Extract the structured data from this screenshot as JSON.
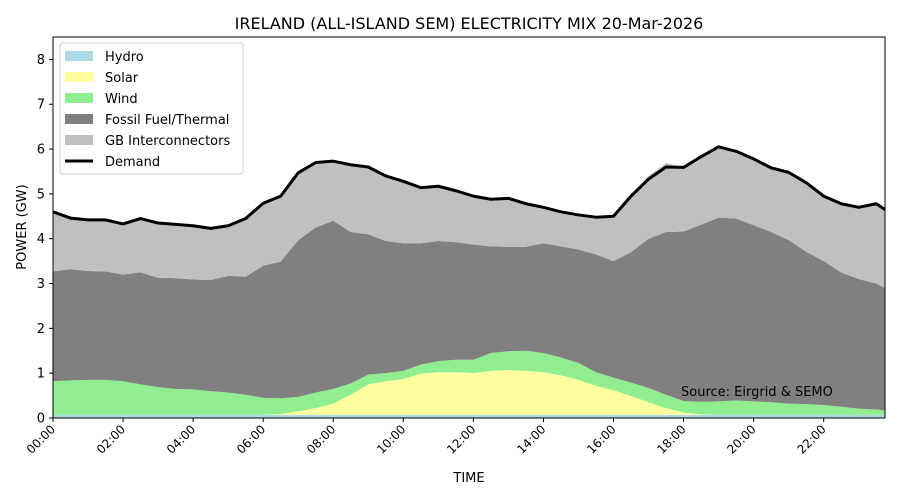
{
  "chart_data": {
    "type": "area",
    "stacked": true,
    "title": "IRELAND (ALL-ISLAND SEM) ELECTRICITY MIX 20-Mar-2026",
    "xlabel": "TIME",
    "ylabel": "POWER (GW)",
    "xlim": [
      0,
      23.75
    ],
    "ylim": [
      0,
      8.5
    ],
    "x_ticks": [
      0,
      2,
      4,
      6,
      8,
      10,
      12,
      14,
      16,
      18,
      20,
      22
    ],
    "x_tick_labels": [
      "00:00",
      "02:00",
      "04:00",
      "06:00",
      "08:00",
      "10:00",
      "12:00",
      "14:00",
      "16:00",
      "18:00",
      "20:00",
      "22:00"
    ],
    "y_ticks": [
      0,
      1,
      2,
      3,
      4,
      5,
      6,
      7,
      8
    ],
    "y_tick_labels": [
      "0",
      "1",
      "2",
      "3",
      "4",
      "5",
      "6",
      "7",
      "8"
    ],
    "annotation": "Source: Eirgrid & SEMO",
    "legend_position": "top-left",
    "x": [
      0,
      0.5,
      1,
      1.5,
      2,
      2.5,
      3,
      3.5,
      4,
      4.5,
      5,
      5.5,
      6,
      6.5,
      7,
      7.5,
      8,
      8.5,
      9,
      9.5,
      10,
      10.5,
      11,
      11.5,
      12,
      12.5,
      13,
      13.5,
      14,
      14.5,
      15,
      15.5,
      16,
      16.5,
      17,
      17.5,
      18,
      18.5,
      19,
      19.5,
      20,
      20.5,
      21,
      21.5,
      22,
      22.5,
      23,
      23.5,
      23.75
    ],
    "series": [
      {
        "name": "Hydro",
        "color": "#add8e6",
        "values": [
          0.07,
          0.07,
          0.07,
          0.07,
          0.07,
          0.07,
          0.07,
          0.07,
          0.07,
          0.07,
          0.07,
          0.07,
          0.07,
          0.07,
          0.07,
          0.07,
          0.07,
          0.07,
          0.07,
          0.07,
          0.07,
          0.07,
          0.07,
          0.07,
          0.07,
          0.07,
          0.07,
          0.07,
          0.07,
          0.07,
          0.07,
          0.07,
          0.07,
          0.07,
          0.07,
          0.07,
          0.07,
          0.07,
          0.07,
          0.07,
          0.07,
          0.07,
          0.07,
          0.07,
          0.07,
          0.07,
          0.07,
          0.07,
          0.07
        ]
      },
      {
        "name": "Solar",
        "color": "#ffffa0",
        "values": [
          0,
          0,
          0,
          0,
          0,
          0,
          0,
          0,
          0,
          0,
          0,
          0,
          0,
          0.02,
          0.08,
          0.15,
          0.25,
          0.45,
          0.68,
          0.75,
          0.8,
          0.92,
          0.95,
          0.95,
          0.93,
          0.98,
          1.0,
          0.98,
          0.95,
          0.88,
          0.78,
          0.65,
          0.55,
          0.42,
          0.28,
          0.15,
          0.05,
          0.01,
          0,
          0,
          0,
          0,
          0,
          0,
          0,
          0,
          0,
          0,
          0
        ]
      },
      {
        "name": "Wind",
        "color": "#90ee90",
        "values": [
          0.75,
          0.77,
          0.78,
          0.78,
          0.75,
          0.68,
          0.62,
          0.58,
          0.57,
          0.53,
          0.5,
          0.45,
          0.38,
          0.35,
          0.32,
          0.35,
          0.33,
          0.25,
          0.22,
          0.18,
          0.18,
          0.2,
          0.25,
          0.28,
          0.3,
          0.4,
          0.42,
          0.45,
          0.43,
          0.4,
          0.38,
          0.3,
          0.28,
          0.3,
          0.32,
          0.3,
          0.26,
          0.28,
          0.3,
          0.32,
          0.3,
          0.28,
          0.25,
          0.24,
          0.22,
          0.18,
          0.14,
          0.12,
          0.1
        ]
      },
      {
        "name": "Fossil Fuel/Thermal",
        "color": "#808080",
        "values": [
          2.45,
          2.48,
          2.43,
          2.42,
          2.38,
          2.5,
          2.44,
          2.47,
          2.45,
          2.48,
          2.6,
          2.63,
          2.95,
          3.05,
          3.5,
          3.68,
          3.75,
          3.38,
          3.13,
          2.95,
          2.85,
          2.71,
          2.68,
          2.62,
          2.57,
          2.38,
          2.33,
          2.32,
          2.45,
          2.48,
          2.53,
          2.63,
          2.6,
          2.91,
          3.33,
          3.63,
          3.78,
          3.95,
          4.1,
          4.06,
          3.93,
          3.8,
          3.65,
          3.4,
          3.21,
          3.0,
          2.89,
          2.81,
          2.73
        ]
      },
      {
        "name": "GB Interconnectors",
        "color": "#c0c0c0",
        "values": [
          1.33,
          1.14,
          1.14,
          1.15,
          1.13,
          1.2,
          1.22,
          1.2,
          1.2,
          1.15,
          1.12,
          1.3,
          1.39,
          1.46,
          1.51,
          1.45,
          1.33,
          1.5,
          1.5,
          1.45,
          1.38,
          1.24,
          1.22,
          1.15,
          1.08,
          1.05,
          1.08,
          0.96,
          0.8,
          0.77,
          0.77,
          0.83,
          1.0,
          1.25,
          1.4,
          1.54,
          1.43,
          1.52,
          1.62,
          1.5,
          1.48,
          1.43,
          1.51,
          1.54,
          1.45,
          1.5,
          1.6,
          1.78,
          1.75
        ]
      },
      {
        "name": "Demand",
        "color": "#000000",
        "type": "line",
        "values": [
          4.6,
          4.46,
          4.42,
          4.42,
          4.33,
          4.45,
          4.35,
          4.32,
          4.29,
          4.23,
          4.29,
          4.45,
          4.79,
          4.95,
          5.47,
          5.7,
          5.73,
          5.65,
          5.6,
          5.4,
          5.28,
          5.14,
          5.17,
          5.07,
          4.95,
          4.88,
          4.9,
          4.78,
          4.7,
          4.6,
          4.53,
          4.48,
          4.5,
          4.95,
          5.33,
          5.6,
          5.59,
          5.83,
          6.05,
          5.95,
          5.78,
          5.58,
          5.48,
          5.25,
          4.95,
          4.78,
          4.7,
          4.78,
          4.65
        ]
      }
    ]
  }
}
